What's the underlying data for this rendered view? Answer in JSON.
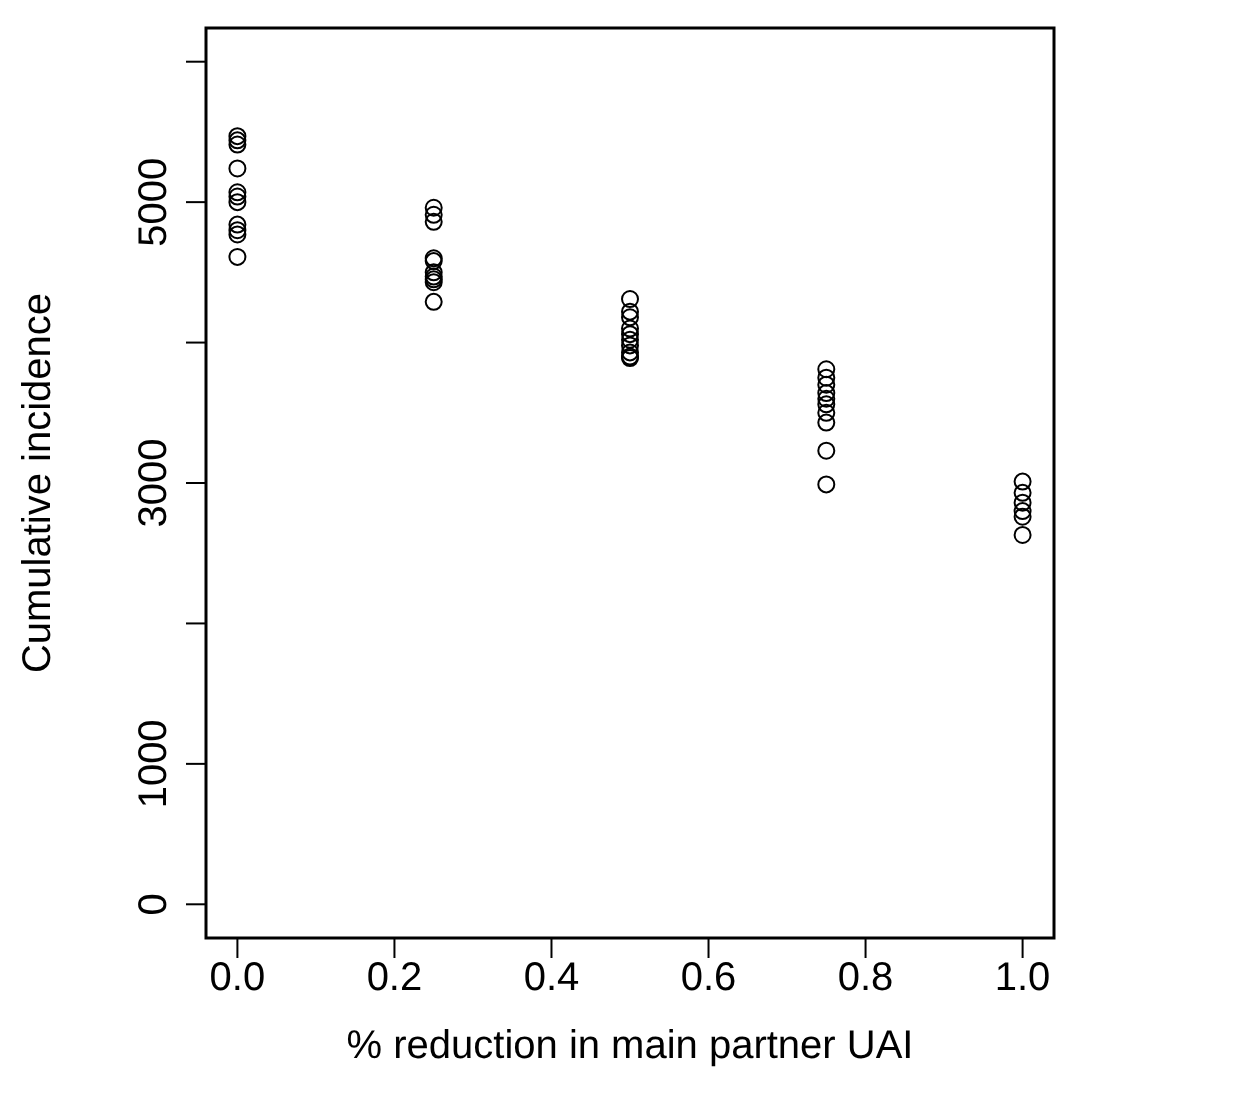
{
  "chart_data": {
    "type": "scatter",
    "xlabel": "% reduction in main partner UAI",
    "ylabel": "Cumulative incidence",
    "marker": "circle",
    "grid": false,
    "legend": false,
    "xlim": [
      -0.04,
      1.04
    ],
    "xticks": [
      {
        "value": 0,
        "label": "0.0"
      },
      {
        "value": 0.2,
        "label": "0.2"
      },
      {
        "value": 0.4,
        "label": "0.4"
      },
      {
        "value": 0.6,
        "label": "0.6"
      },
      {
        "value": 0.8,
        "label": "0.8"
      },
      {
        "value": 1,
        "label": "1.0"
      }
    ],
    "ylim": [
      -240,
      6240
    ],
    "yticks": [
      0,
      1000,
      {
        "value": 2000,
        "label": null
      },
      3000,
      {
        "value": 4000,
        "label": null
      },
      5000,
      {
        "value": 6000,
        "label": null
      }
    ],
    "series": [
      {
        "color": "#000000",
        "x": [
          0,
          0,
          0,
          0,
          0,
          0,
          0,
          0,
          0,
          0,
          0,
          0.25,
          0.25,
          0.25,
          0.25,
          0.25,
          0.25,
          0.25,
          0.25,
          0.25,
          0.25,
          0.5,
          0.5,
          0.5,
          0.5,
          0.5,
          0.5,
          0.5,
          0.5,
          0.5,
          0.5,
          0.75,
          0.75,
          0.75,
          0.75,
          0.75,
          0.75,
          0.75,
          0.75,
          0.75,
          0.75,
          1,
          1,
          1,
          1,
          1,
          1
        ],
        "values": [
          5470,
          5440,
          5410,
          5240,
          5070,
          5040,
          5000,
          4840,
          4800,
          4770,
          4610,
          4960,
          4910,
          4860,
          4600,
          4580,
          4500,
          4470,
          4450,
          4430,
          4290,
          4310,
          4220,
          4180,
          4100,
          4060,
          4020,
          3980,
          3930,
          3900,
          3890,
          3810,
          3750,
          3700,
          3640,
          3600,
          3560,
          3500,
          3430,
          3230,
          2990,
          3010,
          2930,
          2860,
          2800,
          2760,
          2630
        ]
      }
    ]
  }
}
